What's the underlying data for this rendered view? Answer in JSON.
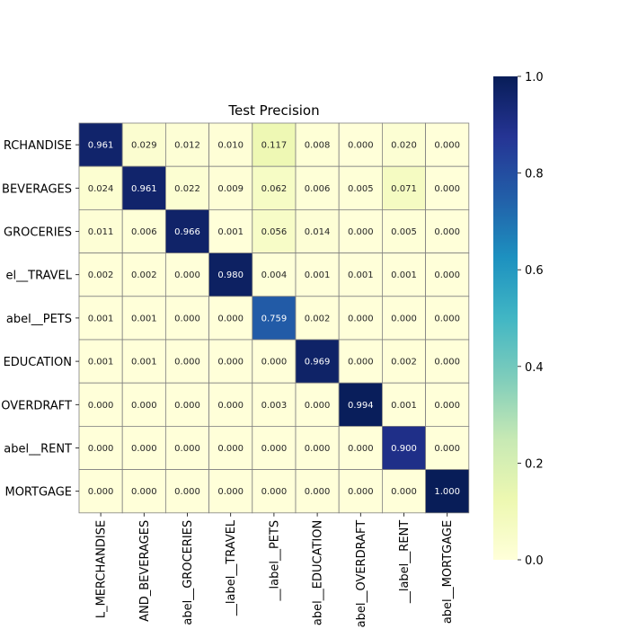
{
  "chart_data": {
    "type": "heatmap",
    "title": "Test Precision",
    "xlabel": "",
    "ylabel": "",
    "row_labels": [
      "RCHANDISE",
      "BEVERAGES",
      "GROCERIES",
      "el__TRAVEL",
      "abel__PETS",
      "EDUCATION",
      "OVERDRAFT",
      "abel__RENT",
      "MORTGAGE"
    ],
    "col_labels": [
      "L_MERCHANDISE",
      "AND_BEVERAGES",
      "abel__GROCERIES",
      "__label__TRAVEL",
      "__label__PETS",
      "abel__EDUCATION",
      "abel__OVERDRAFT",
      "__label__RENT",
      "abel__MORTGAGE"
    ],
    "values": [
      [
        0.961,
        0.029,
        0.012,
        0.01,
        0.117,
        0.008,
        0.0,
        0.02,
        0.0
      ],
      [
        0.024,
        0.961,
        0.022,
        0.009,
        0.062,
        0.006,
        0.005,
        0.071,
        0.0
      ],
      [
        0.011,
        0.006,
        0.966,
        0.001,
        0.056,
        0.014,
        0.0,
        0.005,
        0.0
      ],
      [
        0.002,
        0.002,
        0.0,
        0.98,
        0.004,
        0.001,
        0.001,
        0.001,
        0.0
      ],
      [
        0.001,
        0.001,
        0.0,
        0.0,
        0.759,
        0.002,
        0.0,
        0.0,
        0.0
      ],
      [
        0.001,
        0.001,
        0.0,
        0.0,
        0.0,
        0.969,
        0.0,
        0.002,
        0.0
      ],
      [
        0.0,
        0.0,
        0.0,
        0.0,
        0.003,
        0.0,
        0.994,
        0.001,
        0.0
      ],
      [
        0.0,
        0.0,
        0.0,
        0.0,
        0.0,
        0.0,
        0.0,
        0.9,
        0.0
      ],
      [
        0.0,
        0.0,
        0.0,
        0.0,
        0.0,
        0.0,
        0.0,
        0.0,
        1.0
      ]
    ],
    "value_format_decimals": 3,
    "colormap": "YlGnBu",
    "colormap_stops": [
      "#ffffd9",
      "#edf8b1",
      "#c7e9b4",
      "#7fcdbb",
      "#41b6c4",
      "#1d91c0",
      "#225ea8",
      "#253494",
      "#081d58"
    ],
    "vmin": 0.0,
    "vmax": 1.0,
    "colorbar_ticks": [
      "0.0",
      "0.2",
      "0.4",
      "0.6",
      "0.8",
      "1.0"
    ],
    "grid_line_color": "#808080",
    "dark_text_color": "#262626",
    "light_text_color": "#ffffff"
  }
}
